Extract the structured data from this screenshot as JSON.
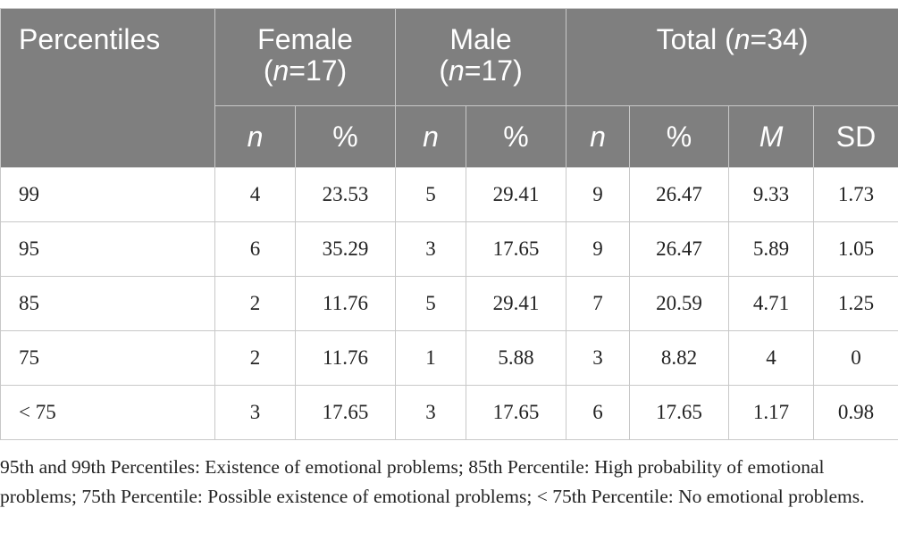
{
  "table": {
    "header": {
      "percentiles": "Percentiles",
      "female_label": "Female",
      "female_n": "n",
      "female_count": "=17",
      "male_label": "Male",
      "male_n": "n",
      "male_count": "=17",
      "total_label": "Total (",
      "total_n": "n",
      "total_count": "=34)",
      "sub": [
        "n",
        "%",
        "n",
        "%",
        "n",
        "%",
        "M",
        "SD"
      ]
    },
    "rows": [
      [
        "99",
        "4",
        "23.53",
        "5",
        "29.41",
        "9",
        "26.47",
        "9.33",
        "1.73"
      ],
      [
        "95",
        "6",
        "35.29",
        "3",
        "17.65",
        "9",
        "26.47",
        "5.89",
        "1.05"
      ],
      [
        "85",
        "2",
        "11.76",
        "5",
        "29.41",
        "7",
        "20.59",
        "4.71",
        "1.25"
      ],
      [
        "75",
        "2",
        "11.76",
        "1",
        "5.88",
        "3",
        "8.82",
        "4",
        "0"
      ],
      [
        "< 75",
        "3",
        "17.65",
        "3",
        "17.65",
        "6",
        "17.65",
        "1.17",
        "0.98"
      ]
    ]
  },
  "footnote": "95th and 99th Percentiles: Existence of emotional problems; 85th Percentile: High probability of emotional problems; 75th Percentile: Possible existence of emotional problems; < 75th Percentile: No emotional problems.",
  "colors": {
    "header_bg": "#7f7f7f",
    "header_text": "#ffffff",
    "border": "#c8c8c8",
    "body_text": "#222222"
  }
}
